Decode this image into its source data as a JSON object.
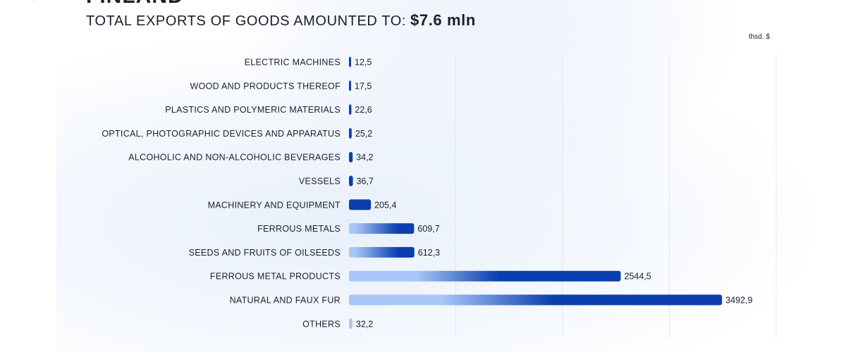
{
  "header": {
    "country": "FINLAND",
    "subtitle_prefix": "TOTAL EXPORTS OF GOODS AMOUNTED TO:",
    "subtitle_amount": "$7.6 mln",
    "unit_label": "thsd. $"
  },
  "colors": {
    "bar_dark": "#0a3fad",
    "bar_light": "#a8c6f6",
    "grid": "#e3e8f1",
    "text": "#1b1f2e",
    "logo": "#8bb0ee"
  },
  "chart_data": {
    "type": "bar",
    "orientation": "horizontal",
    "categories": [
      "ELECTRIC MACHINES",
      "WOOD AND PRODUCTS THEREOF",
      "PLASTICS AND POLYMERIC MATERIALS",
      "OPTICAL, PHOTOGRAPHIC DEVICES AND APPARATUS",
      "ALCOHOLIC AND NON-ALCOHOLIC BEVERAGES",
      "VESSELS",
      "MACHINERY AND EQUIPMENT",
      "FERROUS METALS",
      "SEEDS AND FRUITS OF OILSEEDS",
      "FERROUS METAL PRODUCTS",
      "NATURAL AND FAUX FUR",
      "OTHERS"
    ],
    "values": [
      12.5,
      17.5,
      22.6,
      25.2,
      34.2,
      36.7,
      205.4,
      609.7,
      612.3,
      2544.5,
      3492.9,
      32.2
    ],
    "value_labels": [
      "12,5",
      "17,5",
      "22,6",
      "25,2",
      "34,2",
      "36,7",
      "205,4",
      "609,7",
      "612,3",
      "2544,5",
      "3492,9",
      "32,2"
    ],
    "xlim": [
      0,
      4000
    ],
    "grid": true,
    "legend": "none"
  }
}
